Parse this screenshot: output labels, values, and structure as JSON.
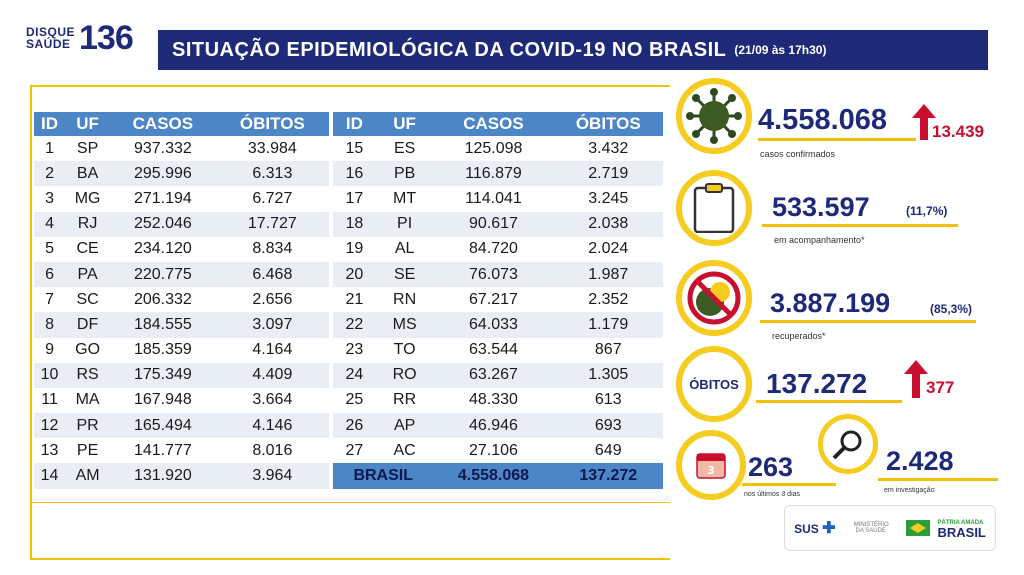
{
  "header": {
    "logo_text_1": "DISQUE",
    "logo_text_2": "SAÚDE",
    "logo_number": "136",
    "title": "SITUAÇÃO EPIDEMIOLÓGICA DA COVID-19 NO BRASIL",
    "date": "(21/09 às 17h30)"
  },
  "table": {
    "headers": [
      "ID",
      "UF",
      "CASOS",
      "ÓBITOS"
    ],
    "left_rows": [
      [
        "1",
        "SP",
        "937.332",
        "33.984"
      ],
      [
        "2",
        "BA",
        "295.996",
        "6.313"
      ],
      [
        "3",
        "MG",
        "271.194",
        "6.727"
      ],
      [
        "4",
        "RJ",
        "252.046",
        "17.727"
      ],
      [
        "5",
        "CE",
        "234.120",
        "8.834"
      ],
      [
        "6",
        "PA",
        "220.775",
        "6.468"
      ],
      [
        "7",
        "SC",
        "206.332",
        "2.656"
      ],
      [
        "8",
        "DF",
        "184.555",
        "3.097"
      ],
      [
        "9",
        "GO",
        "185.359",
        "4.164"
      ],
      [
        "10",
        "RS",
        "175.349",
        "4.409"
      ],
      [
        "11",
        "MA",
        "167.948",
        "3.664"
      ],
      [
        "12",
        "PR",
        "165.494",
        "4.146"
      ],
      [
        "13",
        "PE",
        "141.777",
        "8.016"
      ],
      [
        "14",
        "AM",
        "131.920",
        "3.964"
      ]
    ],
    "right_rows": [
      [
        "15",
        "ES",
        "125.098",
        "3.432"
      ],
      [
        "16",
        "PB",
        "116.879",
        "2.719"
      ],
      [
        "17",
        "MT",
        "114.041",
        "3.245"
      ],
      [
        "18",
        "PI",
        "90.617",
        "2.038"
      ],
      [
        "19",
        "AL",
        "84.720",
        "2.024"
      ],
      [
        "20",
        "SE",
        "76.073",
        "1.987"
      ],
      [
        "21",
        "RN",
        "67.217",
        "2.352"
      ],
      [
        "22",
        "MS",
        "64.033",
        "1.179"
      ],
      [
        "23",
        "TO",
        "63.544",
        "867"
      ],
      [
        "24",
        "RO",
        "63.267",
        "1.305"
      ],
      [
        "25",
        "RR",
        "48.330",
        "613"
      ],
      [
        "26",
        "AP",
        "46.946",
        "693"
      ],
      [
        "27",
        "AC",
        "27.106",
        "649"
      ]
    ],
    "total": {
      "label": "BRASIL",
      "casos": "4.558.068",
      "obitos": "137.272"
    }
  },
  "stats": {
    "confirmed": {
      "value": "4.558.068",
      "delta": "13.439",
      "label": "casos confirmados",
      "icon": "virus-icon"
    },
    "monitoring": {
      "value": "533.597",
      "pct": "(11,7%)",
      "label": "em acompanhamento*",
      "icon": "clipboard-icon"
    },
    "recovered": {
      "value": "3.887.199",
      "pct": "(85,3%)",
      "label": "recuperados*",
      "icon": "virus-crossed-icon"
    },
    "deaths": {
      "circle_label": "ÓBITOS",
      "value": "137.272",
      "delta": "377"
    },
    "recent": {
      "value": "263",
      "label": "nos últimos 3 dias",
      "icon": "calendar-icon"
    },
    "investigating": {
      "value": "2.428",
      "label": "em investigação",
      "icon": "magnifier-icon"
    }
  },
  "footer": {
    "sus": "SUS",
    "ministry": "MINISTÉRIO DA SAÚDE",
    "brasil": "BRASIL",
    "brasil_slogan": "PÁTRIA AMADA"
  },
  "colors": {
    "navy": "#1e2a78",
    "yellow": "#f2c200",
    "header_blue": "#4d86c6",
    "red": "#c8102e"
  }
}
